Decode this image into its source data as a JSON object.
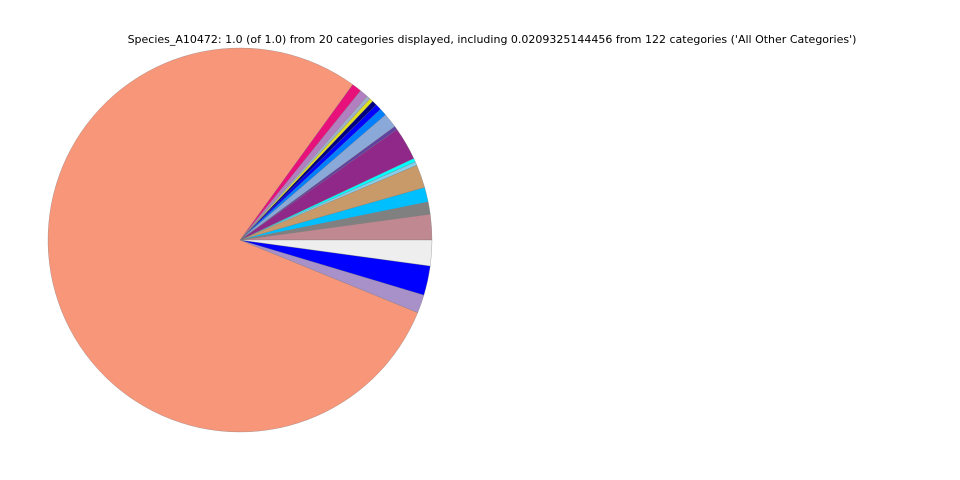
{
  "chart_data": {
    "type": "pie",
    "title": "Species_A10472: 1.0 (of 1.0) from 20 categories displayed, including 0.0209325144456 from 122 categories ('All Other Categories')",
    "start_angle_deg": 0,
    "direction": "counterclockwise",
    "edge_color": "#777777",
    "slices": [
      {
        "value": 0.0209325144456,
        "color": "#c08890"
      },
      {
        "value": 0.01,
        "color": "#808080"
      },
      {
        "value": 0.012,
        "color": "#00bfff"
      },
      {
        "value": 0.019,
        "color": "#c89a6a"
      },
      {
        "value": 0.003,
        "color": "#87ceeb"
      },
      {
        "value": 0.003,
        "color": "#00ffff"
      },
      {
        "value": 0.027,
        "color": "#90288a"
      },
      {
        "value": 0.003,
        "color": "#6040a0"
      },
      {
        "value": 0.012,
        "color": "#8aa8d8"
      },
      {
        "value": 0.006,
        "color": "#0080ff"
      },
      {
        "value": 0.005,
        "color": "#0000ff"
      },
      {
        "value": 0.004,
        "color": "#000080"
      },
      {
        "value": 0.003,
        "color": "#e0e020"
      },
      {
        "value": 0.003,
        "color": "#a0b0c8"
      },
      {
        "value": 0.007,
        "color": "#b080c0"
      },
      {
        "value": 0.008,
        "color": "#e8107a"
      },
      {
        "value": 0.7657674855544,
        "color": "#f8967a"
      },
      {
        "value": 0.015,
        "color": "#a890c8"
      },
      {
        "value": 0.024,
        "color": "#0000ff"
      },
      {
        "value": 0.021,
        "color": "#eeeeee"
      }
    ]
  }
}
